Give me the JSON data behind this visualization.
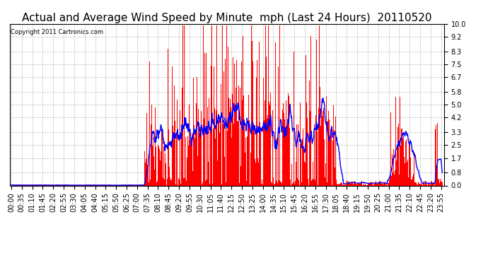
{
  "title": "Actual and Average Wind Speed by Minute  mph (Last 24 Hours)  20110520",
  "copyright": "Copyright 2011 Cartronics.com",
  "yticks": [
    0.0,
    0.8,
    1.7,
    2.5,
    3.3,
    4.2,
    5.0,
    5.8,
    6.7,
    7.5,
    8.3,
    9.2,
    10.0
  ],
  "ymax": 10.0,
  "ymin": 0.0,
  "bar_color": "#FF0000",
  "line_color": "#0000FF",
  "bg_color": "#FFFFFF",
  "grid_color": "#AAAAAA",
  "title_fontsize": 11,
  "tick_fontsize": 7,
  "n_minutes": 1440,
  "label_every": 35,
  "avg_window": 20
}
